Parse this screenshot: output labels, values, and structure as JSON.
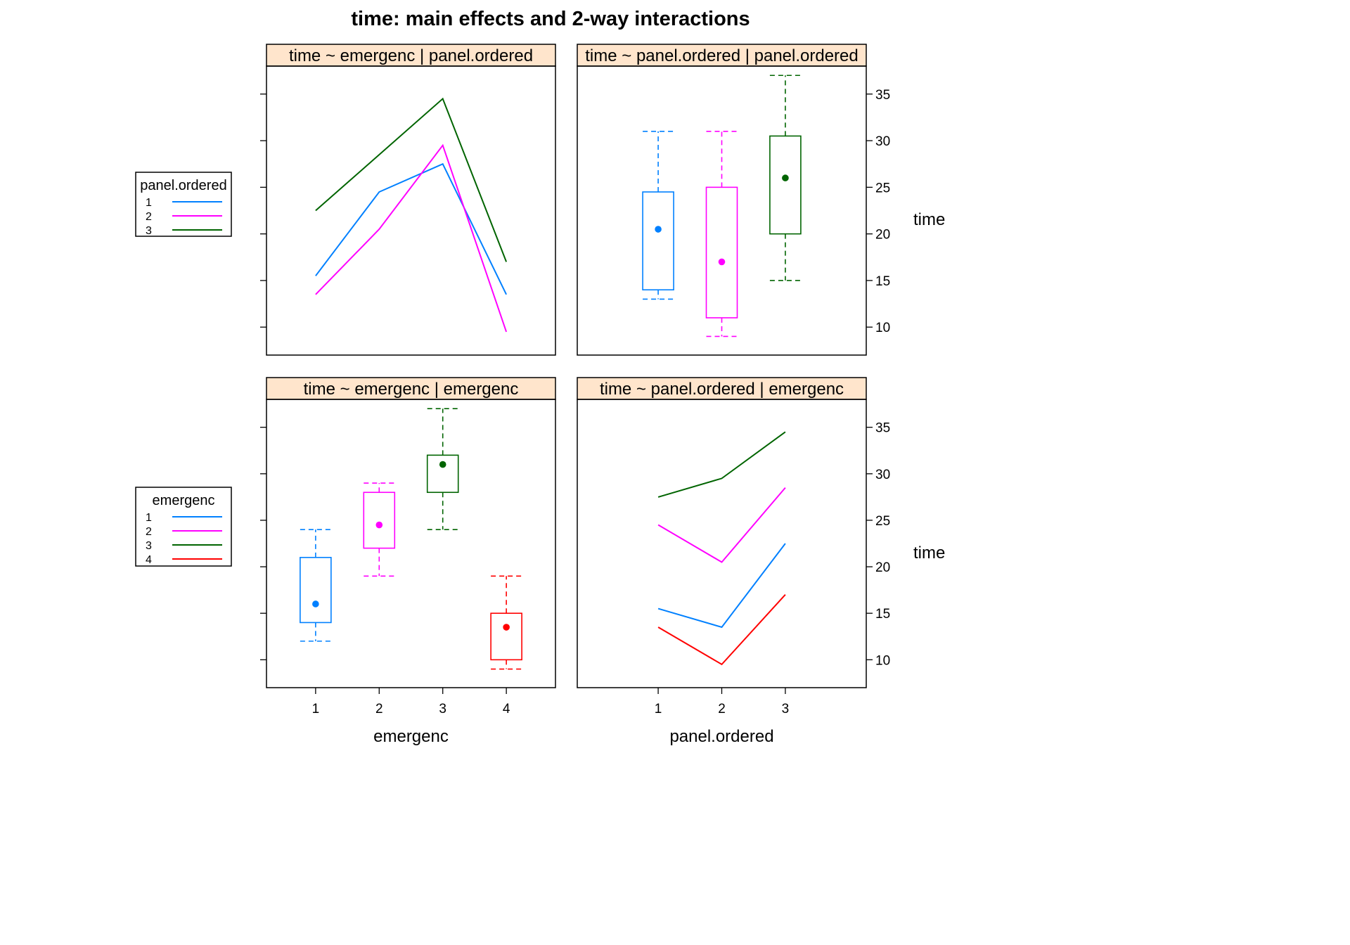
{
  "title": "time: main effects and 2-way interactions",
  "colors": {
    "strip_bg": "#ffe5cc",
    "level_1": "#0080ff",
    "level_2": "#ff00ff",
    "level_3": "#006400",
    "level_4": "#ff0000"
  },
  "legends": [
    {
      "title": "panel.ordered",
      "levels": [
        "1",
        "2",
        "3"
      ]
    },
    {
      "title": "emergenc",
      "levels": [
        "1",
        "2",
        "3",
        "4"
      ]
    }
  ],
  "chart_data": [
    {
      "type": "line",
      "strip": "time ~ emergenc | panel.ordered",
      "categories": [
        "1",
        "2",
        "3",
        "4"
      ],
      "series": [
        {
          "name": "1",
          "values": [
            15.5,
            24.5,
            27.5,
            13.5
          ]
        },
        {
          "name": "2",
          "values": [
            13.5,
            20.5,
            29.5,
            9.5
          ]
        },
        {
          "name": "3",
          "values": [
            22.5,
            28.5,
            34.5,
            17
          ]
        }
      ],
      "ylim": [
        7,
        38
      ]
    },
    {
      "type": "box",
      "strip": "time ~ panel.ordered | panel.ordered",
      "categories": [
        "1",
        "2",
        "3"
      ],
      "boxes": [
        {
          "name": "1",
          "whisker_low": 13,
          "q1": 14,
          "median": 20.5,
          "q3": 24.5,
          "whisker_high": 31
        },
        {
          "name": "2",
          "whisker_low": 9,
          "q1": 11,
          "median": 17,
          "q3": 25,
          "whisker_high": 31
        },
        {
          "name": "3",
          "whisker_low": 15,
          "q1": 20,
          "median": 26,
          "q3": 30.5,
          "whisker_high": 37
        }
      ],
      "yticks": [
        "10",
        "15",
        "20",
        "25",
        "30",
        "35"
      ],
      "ylabel": "time",
      "ylim": [
        7,
        38
      ]
    },
    {
      "type": "box",
      "strip": "time ~ emergenc | emergenc",
      "categories": [
        "1",
        "2",
        "3",
        "4"
      ],
      "boxes": [
        {
          "name": "1",
          "whisker_low": 12,
          "q1": 14,
          "median": 16,
          "q3": 21,
          "whisker_high": 24
        },
        {
          "name": "2",
          "whisker_low": 19,
          "q1": 22,
          "median": 24.5,
          "q3": 28,
          "whisker_high": 29
        },
        {
          "name": "3",
          "whisker_low": 24,
          "q1": 28,
          "median": 31,
          "q3": 32,
          "whisker_high": 37
        },
        {
          "name": "4",
          "whisker_low": 9,
          "q1": 10,
          "median": 13.5,
          "q3": 15,
          "whisker_high": 19
        }
      ],
      "xticks": [
        "1",
        "2",
        "3",
        "4"
      ],
      "xlabel": "emergenc",
      "ylim": [
        7,
        38
      ]
    },
    {
      "type": "line",
      "strip": "time ~ panel.ordered | emergenc",
      "categories": [
        "1",
        "2",
        "3"
      ],
      "series": [
        {
          "name": "1",
          "values": [
            15.5,
            13.5,
            22.5
          ]
        },
        {
          "name": "2",
          "values": [
            24.5,
            20.5,
            28.5
          ]
        },
        {
          "name": "3",
          "values": [
            27.5,
            29.5,
            34.5
          ]
        },
        {
          "name": "4",
          "values": [
            13.5,
            9.5,
            17
          ]
        }
      ],
      "xticks": [
        "1",
        "2",
        "3"
      ],
      "xlabel": "panel.ordered",
      "yticks": [
        "10",
        "15",
        "20",
        "25",
        "30",
        "35"
      ],
      "ylabel": "time",
      "ylim": [
        7,
        38
      ]
    }
  ]
}
